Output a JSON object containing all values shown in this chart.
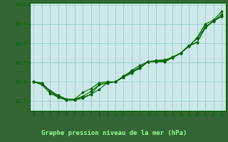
{
  "title": "Graphe pression niveau de la mer (hPa)",
  "bg_color": "#cce8e8",
  "plot_bg_color": "#cce8e8",
  "grid_color": "#99cccc",
  "line_color": "#006600",
  "marker_color": "#006600",
  "title_bg_color": "#336633",
  "title_text_color": "#99ff99",
  "ylim": [
    1014.5,
    1020.1
  ],
  "xlim": [
    -0.5,
    23.5
  ],
  "yticks": [
    1015,
    1016,
    1017,
    1018,
    1019,
    1020
  ],
  "xticks": [
    0,
    1,
    2,
    3,
    4,
    5,
    6,
    7,
    8,
    9,
    10,
    11,
    12,
    13,
    14,
    15,
    16,
    17,
    18,
    19,
    20,
    21,
    22,
    23
  ],
  "series": [
    [
      1016.0,
      1015.9,
      1015.5,
      1015.25,
      1015.1,
      1015.1,
      1015.25,
      1015.5,
      1015.85,
      1015.95,
      1016.0,
      1016.3,
      1016.5,
      1016.7,
      1017.05,
      1017.05,
      1017.05,
      1017.25,
      1017.5,
      1017.9,
      1018.05,
      1018.8,
      1019.15,
      1019.5
    ],
    [
      1016.0,
      1015.9,
      1015.55,
      1015.3,
      1015.1,
      1015.1,
      1015.2,
      1015.35,
      1015.6,
      1015.95,
      1016.0,
      1016.3,
      1016.55,
      1016.75,
      1017.05,
      1017.1,
      1017.1,
      1017.3,
      1017.5,
      1017.85,
      1018.3,
      1019.0,
      1019.2,
      1019.65
    ],
    [
      1016.0,
      1015.95,
      1015.5,
      1015.2,
      1015.05,
      1015.05,
      1015.15,
      1015.35,
      1015.85,
      1015.95,
      1016.0,
      1016.25,
      1016.45,
      1016.75,
      1017.05,
      1017.05,
      1017.05,
      1017.25,
      1017.5,
      1017.85,
      1018.25,
      1018.85,
      1019.15,
      1019.4
    ],
    [
      1016.0,
      1015.85,
      1015.4,
      1015.2,
      1015.1,
      1015.1,
      1015.45,
      1015.65,
      1015.95,
      1016.0,
      1016.0,
      1016.25,
      1016.6,
      1016.85,
      1017.05,
      1017.1,
      1017.15,
      1017.25,
      1017.5,
      1017.85,
      1018.05,
      1018.85,
      1019.15,
      1019.4
    ]
  ]
}
